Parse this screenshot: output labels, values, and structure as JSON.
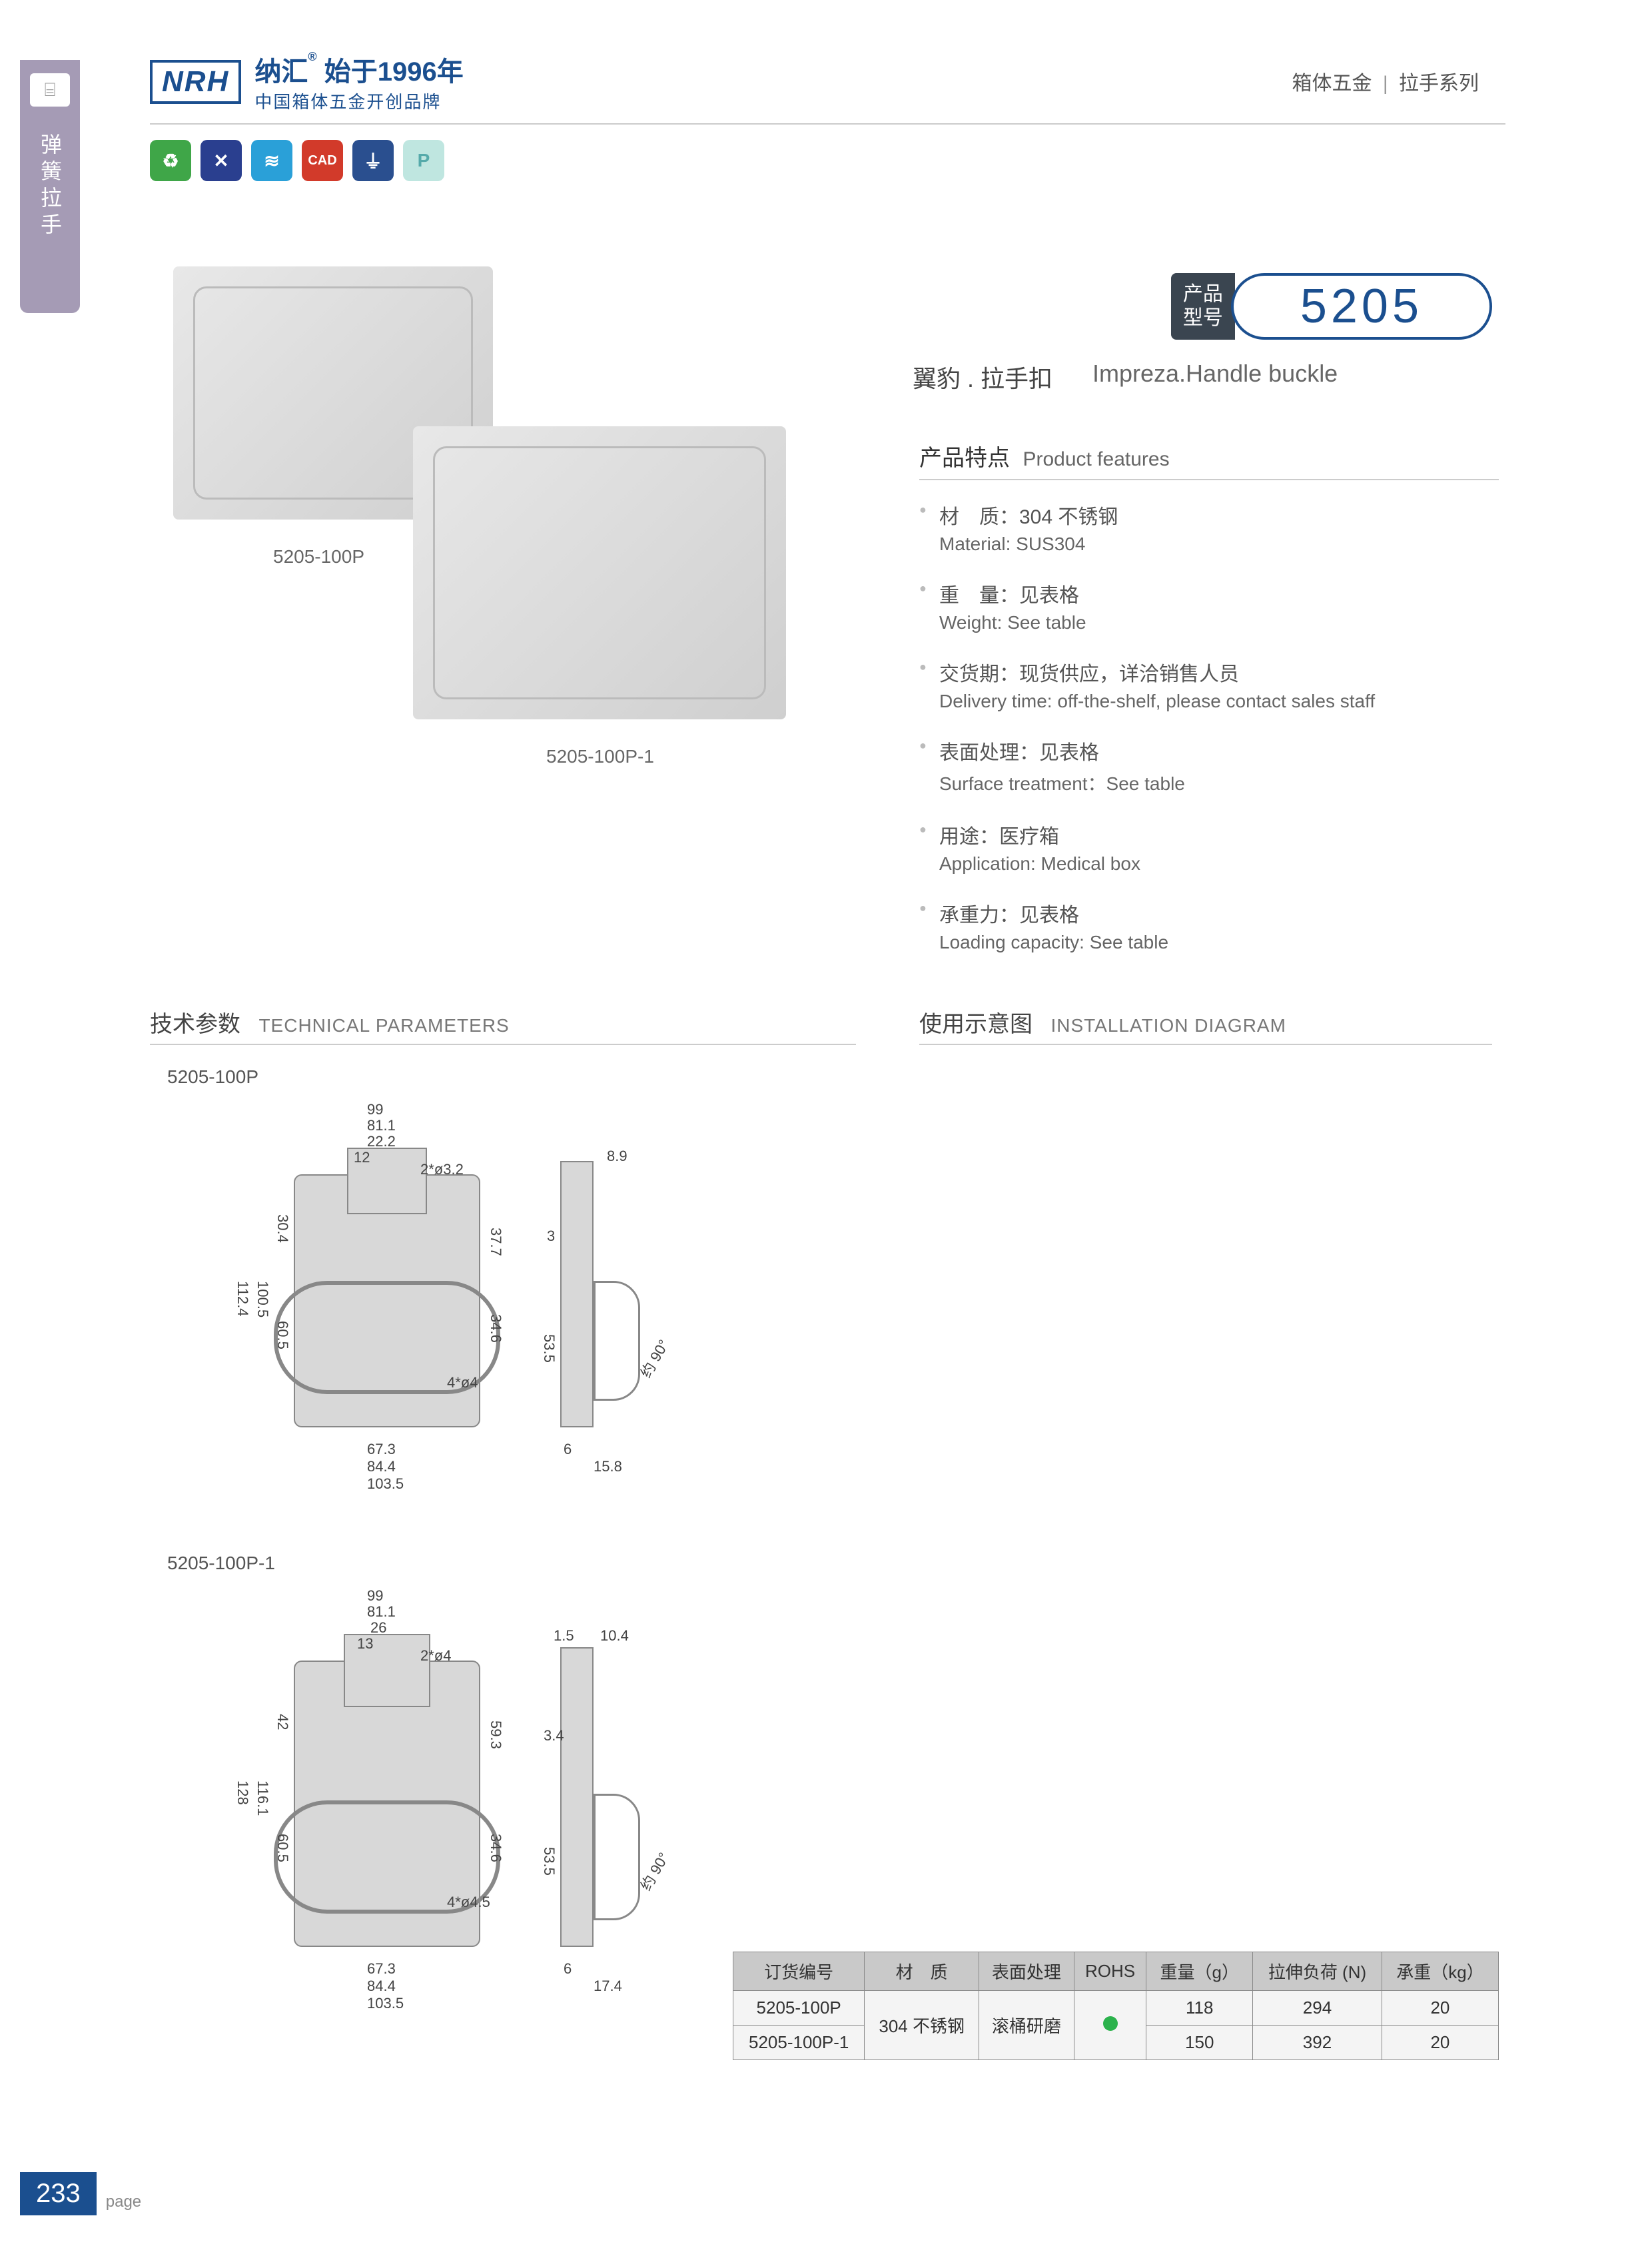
{
  "sideTab": {
    "label": "弹簧拉手"
  },
  "header": {
    "logo": "NRH",
    "brandLine1a": "纳汇",
    "brandLine1b": "始于1996年",
    "brandLine2": "中国箱体五金开创品牌",
    "rightCat1": "箱体五金",
    "rightCat2": "拉手系列"
  },
  "badges": [
    {
      "color": "#3fa648",
      "glyph": "♻"
    },
    {
      "color": "#2a3f8f",
      "glyph": "✕"
    },
    {
      "color": "#2aa0d8",
      "glyph": "≋"
    },
    {
      "color": "#d23a2a",
      "glyph": "CAD"
    },
    {
      "color": "#2a4f8f",
      "glyph": "⏚"
    },
    {
      "color": "#bfe6e0",
      "glyph": "P"
    }
  ],
  "model": {
    "tagLine1": "产品",
    "tagLine2": "型号",
    "number": "5205",
    "subtitleCn": "翼豹 . 拉手扣",
    "subtitleEn": "Impreza.Handle buckle"
  },
  "productLabels": {
    "p1": "5205-100P",
    "p2": "5205-100P-1"
  },
  "features": {
    "titleCn": "产品特点",
    "titleEn": "Product features",
    "items": [
      {
        "cn": "材　质：304 不锈钢",
        "en": "Material: SUS304"
      },
      {
        "cn": "重　量：见表格",
        "en": "Weight: See table"
      },
      {
        "cn": "交货期：现货供应，详洽销售人员",
        "en": "Delivery time: off-the-shelf, please contact sales staff"
      },
      {
        "cn": "表面处理：见表格",
        "en": "Surface treatment：See table"
      },
      {
        "cn": "用途：医疗箱",
        "en": "Application: Medical box"
      },
      {
        "cn": "承重力：见表格",
        "en": "Loading capacity: See table"
      }
    ]
  },
  "sections": {
    "techCn": "技术参数",
    "techEn": "TECHNICAL PARAMETERS",
    "installCn": "使用示意图",
    "installEn": "INSTALLATION DIAGRAM"
  },
  "drawings": {
    "d1": {
      "label": "5205-100P",
      "dims": {
        "w_top1": "99",
        "w_top2": "81.1",
        "w_top3": "22.2",
        "w_top4": "12",
        "hole1": "2*ø3.2",
        "h_left1": "112.4",
        "h_left2": "100.5",
        "h_left3": "60.5",
        "h_left4": "30.4",
        "h_right1": "37.7",
        "h_right2": "34.6",
        "hole2": "4*ø4",
        "w_bot1": "67.3",
        "w_bot2": "84.4",
        "w_bot3": "103.5",
        "side_top": "8.9",
        "side_a": "3",
        "side_h": "53.5",
        "side_b": "6",
        "side_c": "15.8",
        "angle": "约 90°"
      }
    },
    "d2": {
      "label": "5205-100P-1",
      "dims": {
        "w_top1": "99",
        "w_top2": "81.1",
        "w_top3": "26",
        "w_top4": "13",
        "hole1": "2*ø4",
        "h_left1": "128",
        "h_left2": "116.1",
        "h_left3": "60.5",
        "h_left4": "42",
        "h_right1": "59.3",
        "h_right2": "34.6",
        "hole2": "4*ø4.5",
        "w_bot1": "67.3",
        "w_bot2": "84.4",
        "w_bot3": "103.5",
        "side_top1": "1.5",
        "side_top2": "10.4",
        "side_a": "3.4",
        "side_h": "53.5",
        "side_b": "6",
        "side_c": "17.4",
        "angle": "约 90°"
      }
    }
  },
  "table": {
    "headers": [
      "订货编号",
      "材　质",
      "表面处理",
      "ROHS",
      "重量（g）",
      "拉伸负荷 (N)",
      "承重（kg）"
    ],
    "material": "304 不锈钢",
    "surface": "滚桶研磨",
    "rows": [
      {
        "code": "5205-100P",
        "weight": "118",
        "load": "294",
        "cap": "20"
      },
      {
        "code": "5205-100P-1",
        "weight": "150",
        "load": "392",
        "cap": "20"
      }
    ]
  },
  "footer": {
    "pageNum": "233",
    "pageLabel": "page"
  }
}
